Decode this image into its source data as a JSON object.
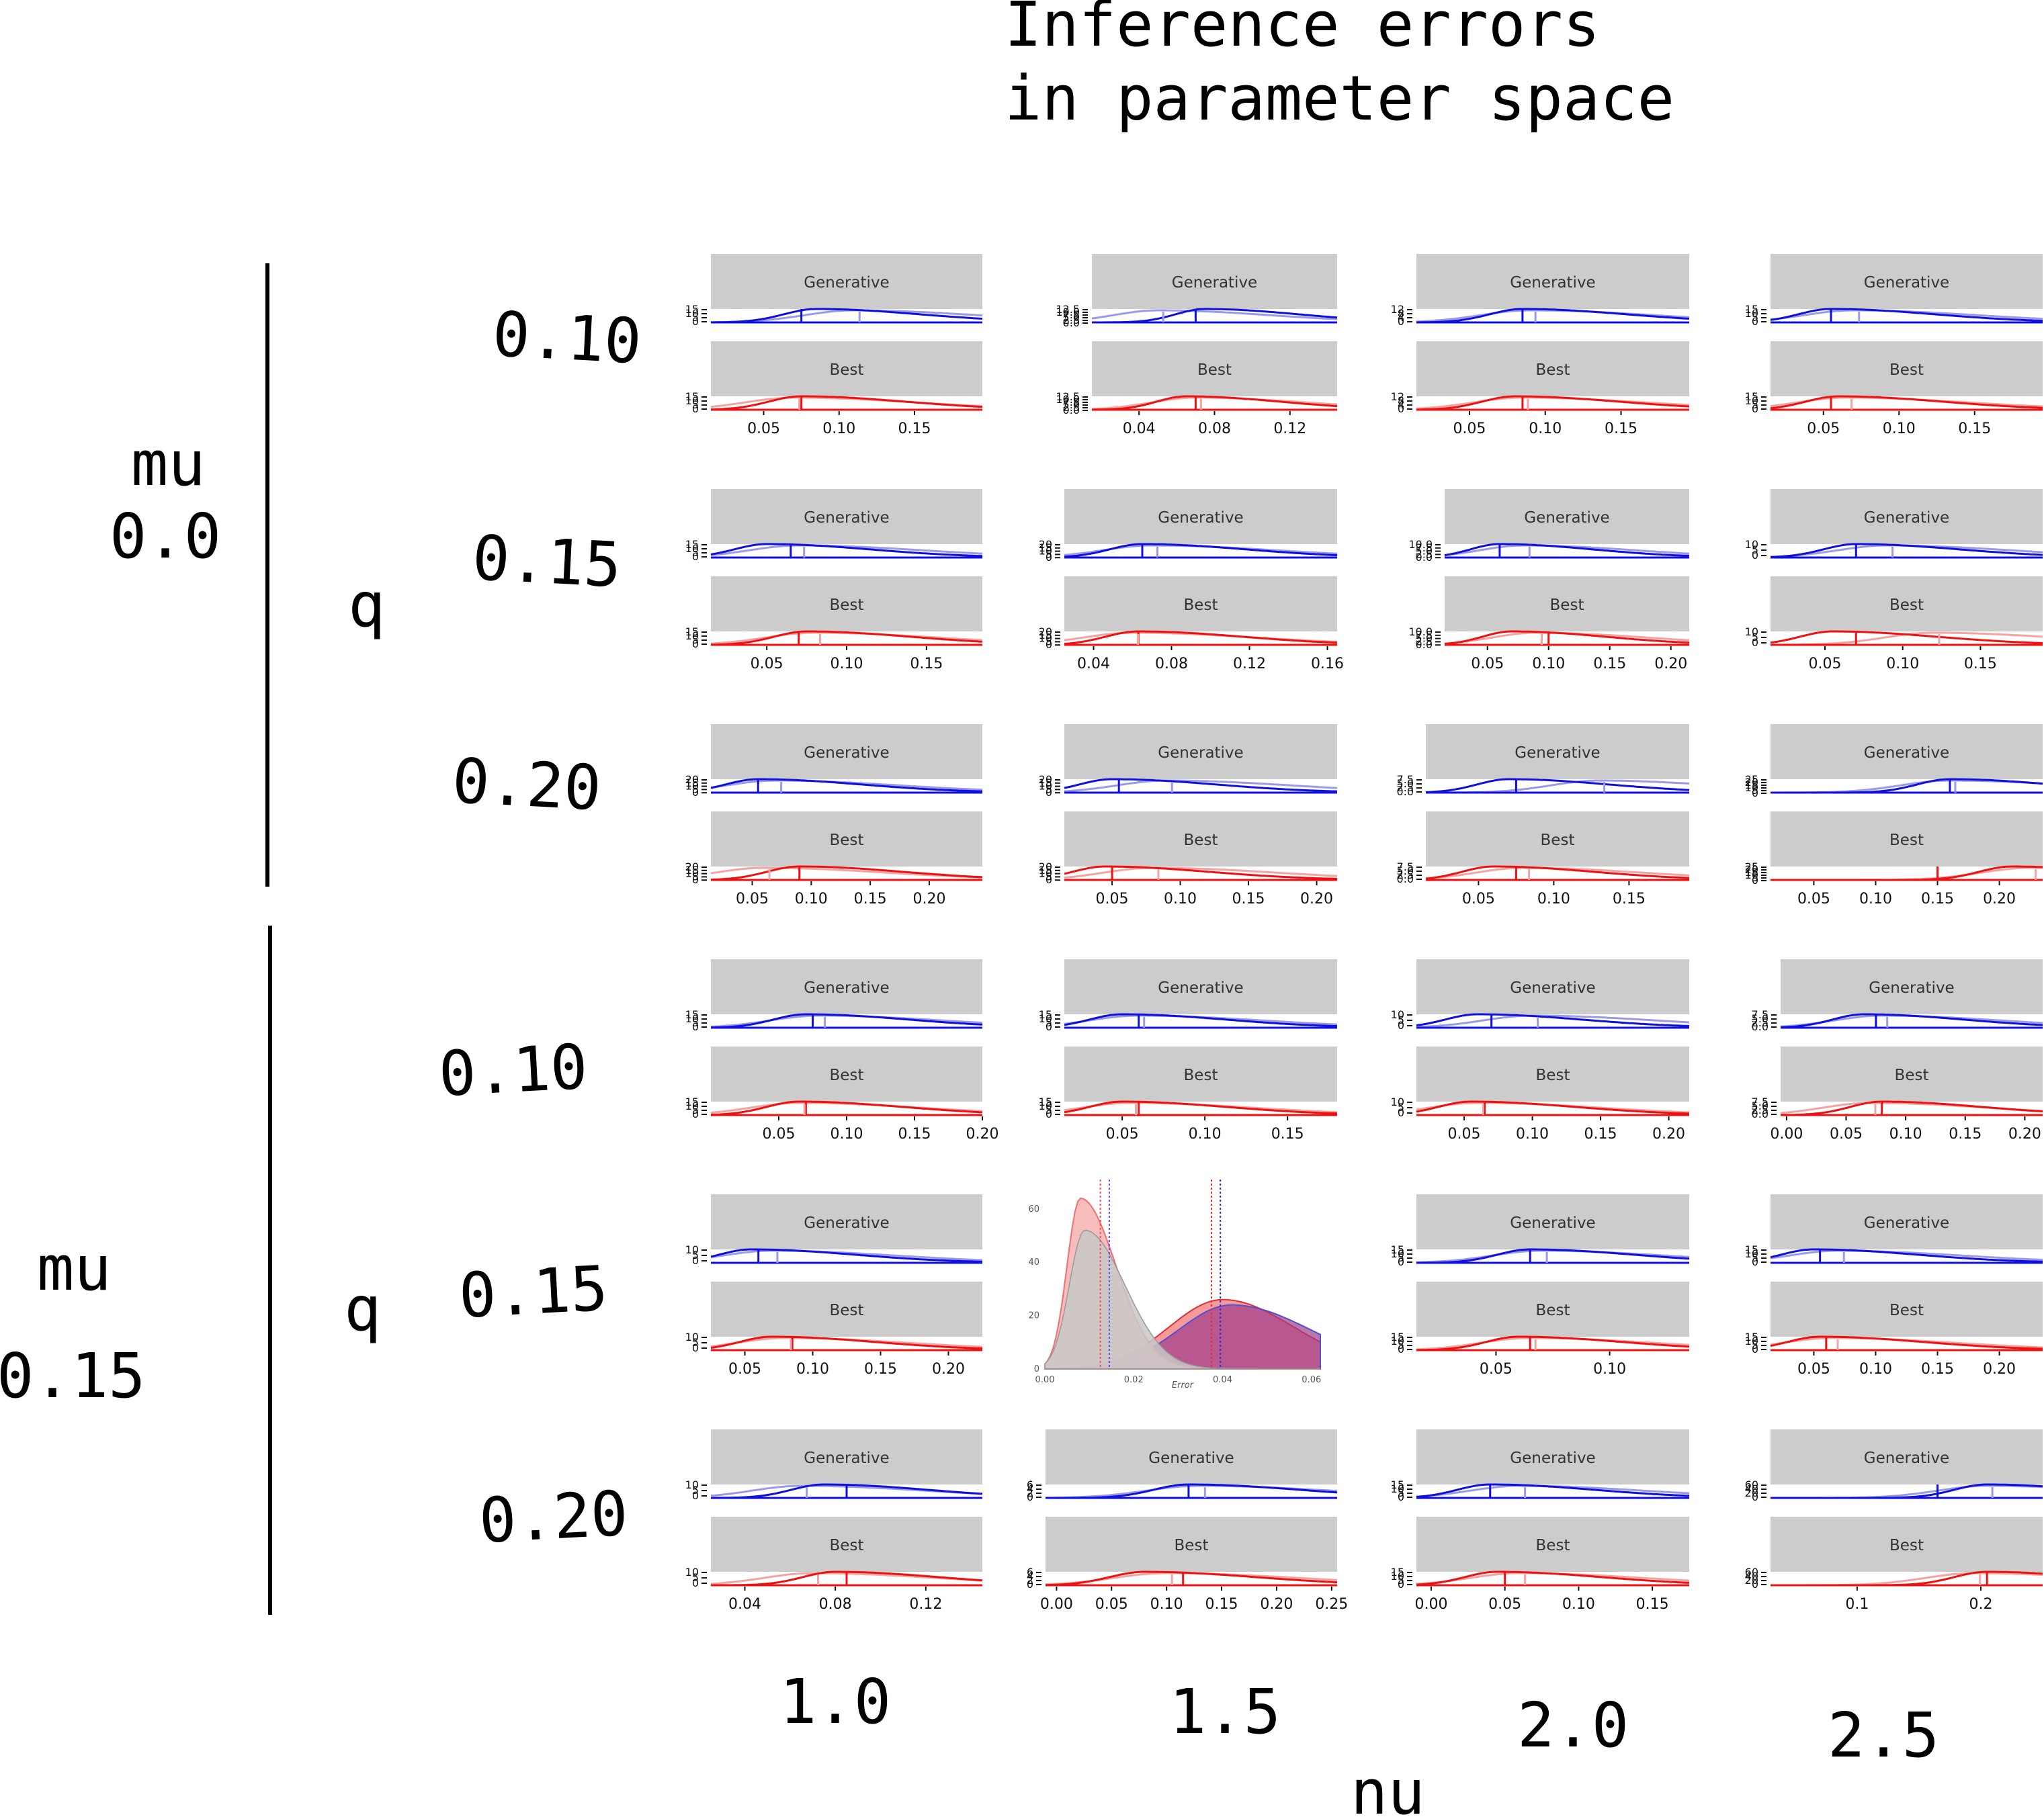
{
  "chart_data": {
    "type": "density-grid",
    "title_lines": [
      "Inference errors",
      "in parameter space"
    ],
    "xlabel": "nu",
    "outer_groups": [
      {
        "name": "mu",
        "value": "0.0"
      },
      {
        "name": "mu",
        "value": "0.15"
      }
    ],
    "inner_axis_name": "q",
    "row_values": [
      "0.10",
      "0.15",
      "0.20",
      "0.10",
      "0.15",
      "0.20"
    ],
    "col_values": [
      "1.0",
      "1.5",
      "2.0",
      "2.5"
    ],
    "facet_labels": [
      "Generative",
      "Best"
    ],
    "colors": {
      "Generative": "#1010dd",
      "Generative_light": "#9a9ae8",
      "Best": "#ee1111",
      "Best_light": "#f4a3a3",
      "strip": "#cccccc",
      "inset_red": "#f07878",
      "inset_purple": "#a03c8c",
      "inset_grey": "#c8c8c8"
    },
    "panels": [
      {
        "row": 0,
        "col": 0,
        "x_ticks": [
          "0.05",
          "0.10",
          "0.15"
        ],
        "x_tick_vals": [
          0.05,
          0.1,
          0.15
        ],
        "xlim": [
          0.015,
          0.195
        ],
        "y_ticks": [
          "15",
          "10",
          "5",
          "0"
        ],
        "peak_gen": 0.085,
        "peak_gen_light": 0.11,
        "peak_best": 0.075,
        "peak_best_light": 0.07,
        "mark_gen": 0.075,
        "mark_best": 0.075
      },
      {
        "row": 0,
        "col": 1,
        "x_ticks": [
          "0.04",
          "0.08",
          "0.12"
        ],
        "x_tick_vals": [
          0.04,
          0.08,
          0.12
        ],
        "xlim": [
          0.015,
          0.145
        ],
        "y_ticks": [
          "12.5",
          "10.0",
          "7.5",
          "5.0",
          "2.5",
          "0.0"
        ],
        "peak_gen": 0.075,
        "peak_gen_light": 0.05,
        "peak_best": 0.065,
        "peak_best_light": 0.07,
        "mark_gen": 0.07,
        "mark_best": 0.07
      },
      {
        "row": 0,
        "col": 2,
        "x_ticks": [
          "0.05",
          "0.10",
          "0.15"
        ],
        "x_tick_vals": [
          0.05,
          0.1,
          0.15
        ],
        "xlim": [
          0.015,
          0.195
        ],
        "y_ticks": [
          "12",
          "8",
          "4",
          "0"
        ],
        "peak_gen": 0.085,
        "peak_gen_light": 0.09,
        "peak_best": 0.08,
        "peak_best_light": 0.085,
        "mark_gen": 0.085,
        "mark_best": 0.085
      },
      {
        "row": 0,
        "col": 3,
        "x_ticks": [
          "0.05",
          "0.10",
          "0.15"
        ],
        "x_tick_vals": [
          0.05,
          0.1,
          0.15
        ],
        "xlim": [
          0.015,
          0.195
        ],
        "y_ticks": [
          "15",
          "10",
          "5",
          "0"
        ],
        "peak_gen": 0.055,
        "peak_gen_light": 0.07,
        "peak_best": 0.06,
        "peak_best_light": 0.065,
        "mark_gen": 0.055,
        "mark_best": 0.055
      },
      {
        "row": 1,
        "col": 0,
        "x_ticks": [
          "0.05",
          "0.10",
          "0.15"
        ],
        "x_tick_vals": [
          0.05,
          0.1,
          0.15
        ],
        "xlim": [
          0.015,
          0.185
        ],
        "y_ticks": [
          "15",
          "10",
          "5",
          "0"
        ],
        "peak_gen": 0.05,
        "peak_gen_light": 0.07,
        "peak_best": 0.075,
        "peak_best_light": 0.08,
        "mark_gen": 0.065,
        "mark_best": 0.07
      },
      {
        "row": 1,
        "col": 1,
        "x_ticks": [
          "0.04",
          "0.08",
          "0.12",
          "0.16"
        ],
        "x_tick_vals": [
          0.04,
          0.08,
          0.12,
          0.16
        ],
        "xlim": [
          0.025,
          0.165
        ],
        "y_ticks": [
          "20",
          "15",
          "10",
          "5",
          "0"
        ],
        "peak_gen": 0.065,
        "peak_gen_light": 0.07,
        "peak_best": 0.063,
        "peak_best_light": 0.06,
        "mark_gen": 0.065,
        "mark_best": 0.063
      },
      {
        "row": 1,
        "col": 2,
        "x_ticks": [
          "0.05",
          "0.10",
          "0.15",
          "0.20"
        ],
        "x_tick_vals": [
          0.05,
          0.1,
          0.15,
          0.2
        ],
        "xlim": [
          0.015,
          0.215
        ],
        "y_ticks": [
          "10.0",
          "7.5",
          "5.0",
          "2.5",
          "0.0"
        ],
        "peak_gen": 0.06,
        "peak_gen_light": 0.08,
        "peak_best": 0.07,
        "peak_best_light": 0.09,
        "mark_gen": 0.06,
        "mark_best": 0.1
      },
      {
        "row": 1,
        "col": 3,
        "x_ticks": [
          "0.05",
          "0.10",
          "0.15"
        ],
        "x_tick_vals": [
          0.05,
          0.1,
          0.15
        ],
        "xlim": [
          0.015,
          0.19
        ],
        "y_ticks": [
          "10",
          "5",
          "0"
        ],
        "peak_gen": 0.07,
        "peak_gen_light": 0.09,
        "peak_best": 0.055,
        "peak_best_light": 0.12,
        "mark_gen": 0.07,
        "mark_best": 0.07
      },
      {
        "row": 2,
        "col": 0,
        "x_ticks": [
          "0.05",
          "0.10",
          "0.15",
          "0.20"
        ],
        "x_tick_vals": [
          0.05,
          0.1,
          0.15,
          0.2
        ],
        "xlim": [
          0.015,
          0.245
        ],
        "y_ticks": [
          "20",
          "15",
          "10",
          "5",
          "0"
        ],
        "peak_gen": 0.055,
        "peak_gen_light": 0.07,
        "peak_best": 0.09,
        "peak_best_light": 0.06,
        "mark_gen": 0.055,
        "mark_best": 0.09
      },
      {
        "row": 2,
        "col": 1,
        "x_ticks": [
          "0.05",
          "0.10",
          "0.15",
          "0.20"
        ],
        "x_tick_vals": [
          0.05,
          0.1,
          0.15,
          0.2
        ],
        "xlim": [
          0.015,
          0.215
        ],
        "y_ticks": [
          "20",
          "15",
          "10",
          "5",
          "0"
        ],
        "peak_gen": 0.05,
        "peak_gen_light": 0.09,
        "peak_best": 0.045,
        "peak_best_light": 0.08,
        "mark_gen": 0.055,
        "mark_best": 0.05
      },
      {
        "row": 2,
        "col": 2,
        "x_ticks": [
          "0.05",
          "0.10",
          "0.15"
        ],
        "x_tick_vals": [
          0.05,
          0.1,
          0.15
        ],
        "xlim": [
          0.015,
          0.19
        ],
        "y_ticks": [
          "7.5",
          "5.0",
          "2.5",
          "0.0"
        ],
        "peak_gen": 0.07,
        "peak_gen_light": 0.13,
        "peak_best": 0.06,
        "peak_best_light": 0.08,
        "mark_gen": 0.075,
        "mark_best": 0.075
      },
      {
        "row": 2,
        "col": 3,
        "x_ticks": [
          "0.05",
          "0.10",
          "0.15",
          "0.20"
        ],
        "x_tick_vals": [
          0.05,
          0.1,
          0.15,
          0.2
        ],
        "xlim": [
          0.015,
          0.235
        ],
        "y_ticks": [
          "25",
          "20",
          "15",
          "10",
          "5",
          "0"
        ],
        "peak_gen": 0.16,
        "peak_gen_light": 0.16,
        "peak_best": 0.21,
        "peak_best_light": 0.225,
        "mark_gen": 0.16,
        "mark_best": 0.15
      },
      {
        "row": 3,
        "col": 0,
        "x_ticks": [
          "0.05",
          "0.10",
          "0.15",
          "0.20"
        ],
        "x_tick_vals": [
          0.05,
          0.1,
          0.15,
          0.2
        ],
        "xlim": [
          0.0,
          0.2
        ],
        "y_ticks": [
          "15",
          "10",
          "5",
          "0"
        ],
        "peak_gen": 0.07,
        "peak_gen_light": 0.08,
        "peak_best": 0.065,
        "peak_best_light": 0.065,
        "mark_gen": 0.075,
        "mark_best": 0.07
      },
      {
        "row": 3,
        "col": 1,
        "x_ticks": [
          "0.05",
          "0.10",
          "0.15"
        ],
        "x_tick_vals": [
          0.05,
          0.1,
          0.15
        ],
        "xlim": [
          0.015,
          0.18
        ],
        "y_ticks": [
          "15",
          "10",
          "5",
          "0"
        ],
        "peak_gen": 0.05,
        "peak_gen_light": 0.06,
        "peak_best": 0.05,
        "peak_best_light": 0.055,
        "mark_gen": 0.06,
        "mark_best": 0.06
      },
      {
        "row": 3,
        "col": 2,
        "x_ticks": [
          "0.05",
          "0.10",
          "0.15",
          "0.20"
        ],
        "x_tick_vals": [
          0.05,
          0.1,
          0.15,
          0.2
        ],
        "xlim": [
          0.015,
          0.215
        ],
        "y_ticks": [
          "10",
          "5",
          "0"
        ],
        "peak_gen": 0.06,
        "peak_gen_light": 0.1,
        "peak_best": 0.055,
        "peak_best_light": 0.06,
        "mark_gen": 0.07,
        "mark_best": 0.065
      },
      {
        "row": 3,
        "col": 3,
        "x_ticks": [
          "0.00",
          "0.05",
          "0.10",
          "0.15",
          "0.20"
        ],
        "x_tick_vals": [
          0.0,
          0.05,
          0.1,
          0.15,
          0.2
        ],
        "xlim": [
          -0.005,
          0.215
        ],
        "y_ticks": [
          "7.5",
          "5.0",
          "2.5",
          "0.0"
        ],
        "peak_gen": 0.065,
        "peak_gen_light": 0.08,
        "peak_best": 0.08,
        "peak_best_light": 0.07,
        "mark_gen": 0.075,
        "mark_best": 0.08
      },
      {
        "row": 4,
        "col": 0,
        "x_ticks": [
          "0.05",
          "0.10",
          "0.15",
          "0.20"
        ],
        "x_tick_vals": [
          0.05,
          0.1,
          0.15,
          0.2
        ],
        "xlim": [
          0.025,
          0.225
        ],
        "y_ticks": [
          "10",
          "5",
          "0"
        ],
        "peak_gen": 0.055,
        "peak_gen_light": 0.07,
        "peak_best": 0.07,
        "peak_best_light": 0.08,
        "mark_gen": 0.06,
        "mark_best": 0.085
      },
      {
        "row": 4,
        "col": 1,
        "inset": true,
        "inset_x_ticks": [
          "0.00",
          "0.02",
          "0.04",
          "0.06"
        ],
        "inset_x_tick_vals": [
          0.0,
          0.02,
          0.04,
          0.06
        ],
        "inset_y_ticks": [
          "60",
          "40",
          "20",
          "0"
        ],
        "inset_y_tick_vals": [
          60,
          40,
          20,
          0
        ],
        "inset_xlabel": "Error",
        "inset_xlim": [
          0.0,
          0.062
        ],
        "inset_ylim": [
          0,
          68
        ],
        "inset_peak_a": 0.008,
        "inset_peak_b": 0.04,
        "inset_peak_a_height": 64,
        "inset_peak_b_height": 26
      },
      {
        "row": 4,
        "col": 2,
        "x_ticks": [
          "0.05",
          "0.10"
        ],
        "x_tick_vals": [
          0.05,
          0.1
        ],
        "xlim": [
          0.015,
          0.135
        ],
        "y_ticks": [
          "15",
          "10",
          "5",
          "0"
        ],
        "peak_gen": 0.065,
        "peak_gen_light": 0.07,
        "peak_best": 0.06,
        "peak_best_light": 0.065,
        "mark_gen": 0.065,
        "mark_best": 0.065
      },
      {
        "row": 4,
        "col": 3,
        "x_ticks": [
          "0.05",
          "0.10",
          "0.15",
          "0.20"
        ],
        "x_tick_vals": [
          0.05,
          0.1,
          0.15,
          0.2
        ],
        "xlim": [
          0.015,
          0.235
        ],
        "y_ticks": [
          "15",
          "10",
          "5",
          "0"
        ],
        "peak_gen": 0.05,
        "peak_gen_light": 0.07,
        "peak_best": 0.055,
        "peak_best_light": 0.065,
        "mark_gen": 0.055,
        "mark_best": 0.06
      },
      {
        "row": 5,
        "col": 0,
        "x_ticks": [
          "0.04",
          "0.08",
          "0.12"
        ],
        "x_tick_vals": [
          0.04,
          0.08,
          0.12
        ],
        "xlim": [
          0.025,
          0.145
        ],
        "y_ticks": [
          "10",
          "5",
          "0"
        ],
        "peak_gen": 0.075,
        "peak_gen_light": 0.065,
        "peak_best": 0.08,
        "peak_best_light": 0.07,
        "mark_gen": 0.085,
        "mark_best": 0.085
      },
      {
        "row": 5,
        "col": 1,
        "x_ticks": [
          "0.00",
          "0.05",
          "0.10",
          "0.15",
          "0.20",
          "0.25"
        ],
        "x_tick_vals": [
          0.0,
          0.05,
          0.1,
          0.15,
          0.2,
          0.25
        ],
        "xlim": [
          -0.01,
          0.255
        ],
        "y_ticks": [
          "6",
          "4",
          "2",
          "0"
        ],
        "peak_gen": 0.12,
        "peak_gen_light": 0.13,
        "peak_best": 0.08,
        "peak_best_light": 0.1,
        "mark_gen": 0.12,
        "mark_best": 0.115
      },
      {
        "row": 5,
        "col": 2,
        "x_ticks": [
          "0.00",
          "0.05",
          "0.10",
          "0.15"
        ],
        "x_tick_vals": [
          0.0,
          0.05,
          0.1,
          0.15
        ],
        "xlim": [
          -0.01,
          0.175
        ],
        "y_ticks": [
          "15",
          "10",
          "5",
          "0"
        ],
        "peak_gen": 0.04,
        "peak_gen_light": 0.06,
        "peak_best": 0.045,
        "peak_best_light": 0.06,
        "mark_gen": 0.04,
        "mark_best": 0.05
      },
      {
        "row": 5,
        "col": 3,
        "x_ticks": [
          "0.1",
          "0.2"
        ],
        "x_tick_vals": [
          0.1,
          0.2
        ],
        "xlim": [
          0.03,
          0.25
        ],
        "y_ticks": [
          "60",
          "40",
          "20",
          "0"
        ],
        "peak_gen": 0.205,
        "peak_gen_light": 0.205,
        "peak_best": 0.205,
        "peak_best_light": 0.195,
        "mark_gen": 0.165,
        "mark_best": 0.205
      }
    ]
  }
}
